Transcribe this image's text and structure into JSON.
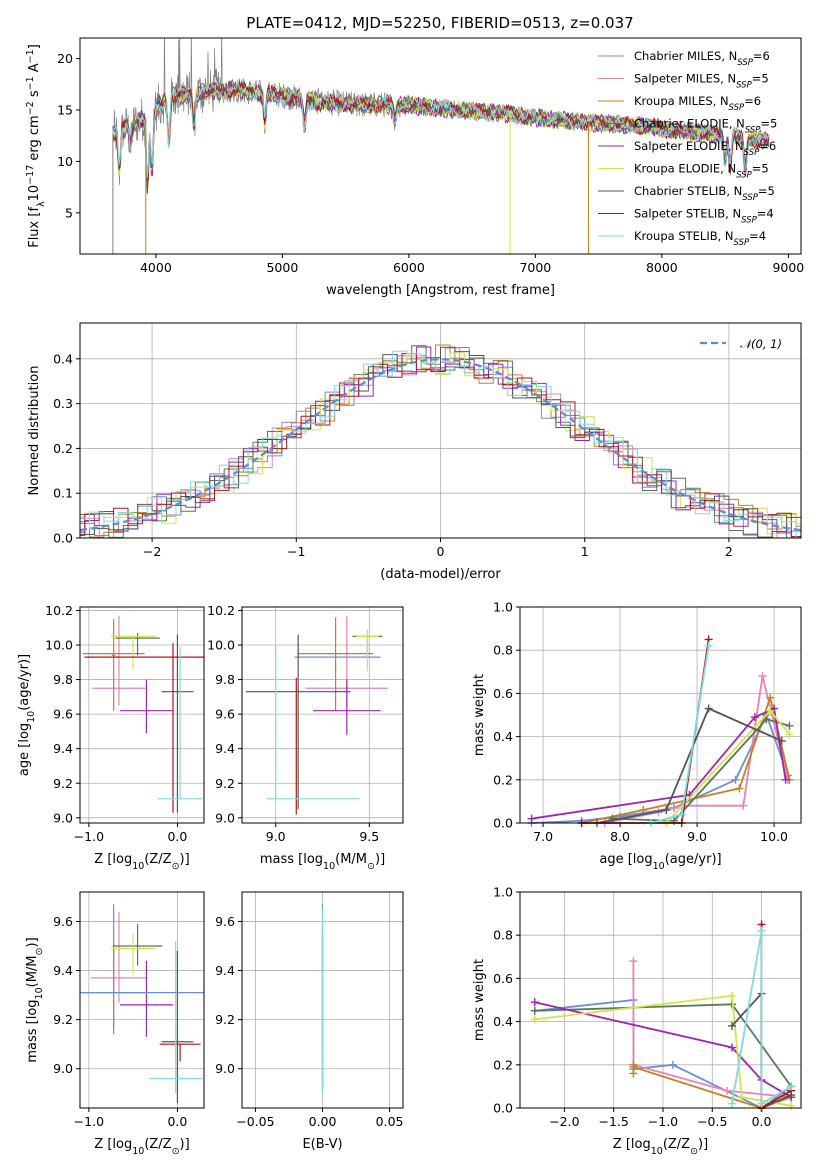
{
  "figure": {
    "title": "PLATE=0412, MJD=52250, FIBERID=0513, z=0.037"
  },
  "models": [
    {
      "name": "Chabrier MILES, N$_{SSP}$=6",
      "label_main": "Chabrier MILES, N",
      "label_sub": "SSP",
      "label_tail": "=6",
      "color": "#6b8fd6"
    },
    {
      "name": "Salpeter MILES, N$_{SSP}$=5",
      "label_main": "Salpeter MILES, N",
      "label_sub": "SSP",
      "label_tail": "=5",
      "color": "#e882b4"
    },
    {
      "name": "Kroupa MILES, N$_{SSP}$=6",
      "label_main": "Kroupa MILES, N",
      "label_sub": "SSP",
      "label_tail": "=6",
      "color": "#c87f22"
    },
    {
      "name": "Chabrier ELODIE, N$_{SSP}$=5",
      "label_main": "Chabrier ELODIE, N",
      "label_sub": "SSP",
      "label_tail": "=5",
      "color": "#557a55"
    },
    {
      "name": "Salpeter ELODIE, N$_{SSP}$=6",
      "label_main": "Salpeter ELODIE, N",
      "label_sub": "SSP",
      "label_tail": "=6",
      "color": "#9b27b0"
    },
    {
      "name": "Kroupa ELODIE, N$_{SSP}$=5",
      "label_main": "Kroupa ELODIE, N",
      "label_sub": "SSP",
      "label_tail": "=5",
      "color": "#d6e24a"
    },
    {
      "name": "Chabrier STELIB, N$_{SSP}$=5",
      "label_main": "Chabrier STELIB, N",
      "label_sub": "SSP",
      "label_tail": "=5",
      "color": "#555555"
    },
    {
      "name": "Salpeter STELIB, N$_{SSP}$=4",
      "label_main": "Salpeter STELIB, N",
      "label_sub": "SSP",
      "label_tail": "=4",
      "color": "#b01515"
    },
    {
      "name": "Kroupa STELIB, N$_{SSP}$=4",
      "label_main": "Kroupa STELIB, N",
      "label_sub": "SSP",
      "label_tail": "=4",
      "color": "#7fdbe0"
    }
  ],
  "chart_data": [
    {
      "id": "spectrum",
      "type": "line",
      "title": "PLATE=0412, MJD=52250, FIBERID=0513, z=0.037",
      "xlabel": "wavelength [Angstrom, rest frame]",
      "ylabel_main": "Flux [f",
      "ylabel_rest": "10",
      "ylabel_units": "erg cm",
      "ylabel_a": "s",
      "ylabel_b": "A",
      "xlim": [
        3400,
        9100
      ],
      "ylim": [
        1,
        22
      ],
      "xticks": [
        4000,
        5000,
        6000,
        7000,
        8000,
        9000
      ],
      "yticks": [
        5,
        10,
        15,
        20
      ],
      "continuum": [
        [
          3660,
          12.7
        ],
        [
          3800,
          13.5
        ],
        [
          3950,
          14.5
        ],
        [
          4100,
          16.4
        ],
        [
          4300,
          16.6
        ],
        [
          4600,
          17.0
        ],
        [
          5000,
          16.4
        ],
        [
          5300,
          15.8
        ],
        [
          5600,
          15.5
        ],
        [
          6000,
          15.5
        ],
        [
          6400,
          15.0
        ],
        [
          6800,
          14.6
        ],
        [
          7000,
          14.2
        ],
        [
          7400,
          13.8
        ],
        [
          7800,
          13.5
        ],
        [
          8200,
          12.9
        ],
        [
          8600,
          12.4
        ],
        [
          8850,
          12.0
        ]
      ],
      "absorption": [
        [
          3710,
          9.0
        ],
        [
          3800,
          11.5
        ],
        [
          3934,
          7.5
        ],
        [
          3969,
          9.0
        ],
        [
          4102,
          12.0
        ],
        [
          4300,
          13.8
        ],
        [
          4861,
          13.8
        ],
        [
          5175,
          13.5
        ],
        [
          5890,
          14.0
        ],
        [
          8500,
          9.8
        ],
        [
          8540,
          9.5
        ],
        [
          8660,
          9.0
        ]
      ]
    },
    {
      "id": "residuals",
      "type": "bar",
      "xlabel": "(data-model)/error",
      "ylabel": "Normed distribution",
      "xlim": [
        -2.5,
        2.5
      ],
      "ylim": [
        0,
        0.48
      ],
      "xticks": [
        -2,
        -1,
        0,
        1,
        2
      ],
      "yticks": [
        0,
        0.1,
        0.2,
        0.3,
        0.4
      ],
      "legend": "$\\mathcal{N}(0,1)$",
      "legend_text": "𝒩(0, 1)"
    },
    {
      "id": "z_age",
      "type": "scatter",
      "xlabel": "Z [log$_{10}$(Z/Z$_\\odot$)]",
      "ylabel": "age  [log$_{10}$(age/yr)]",
      "xlim": [
        -1.1,
        0.3
      ],
      "ylim": [
        8.97,
        10.22
      ],
      "xticks": [
        -1,
        0
      ],
      "yticks": [
        9.0,
        9.2,
        9.4,
        9.6,
        9.8,
        10.0,
        10.2
      ],
      "points": [
        {
          "m": 0,
          "x": -0.72,
          "xerr": 0.02,
          "y": 9.94,
          "yerr_lo": 0.0,
          "yerr_hi": 0.0
        },
        {
          "m": 1,
          "x": -0.66,
          "xerr": 0.3,
          "y": 9.75,
          "yerr_lo": 0.1,
          "yerr_hi": 0.42
        },
        {
          "m": 2,
          "x": -0.72,
          "xerr": 0.35,
          "y": 9.95,
          "yerr_lo": 0.33,
          "yerr_hi": 0.2
        },
        {
          "m": 3,
          "x": -0.45,
          "xerr": 0.25,
          "y": 10.04,
          "yerr_lo": 0.1,
          "yerr_hi": 0.03
        },
        {
          "m": 4,
          "x": -0.35,
          "xerr": 0.3,
          "y": 9.62,
          "yerr_lo": 0.13,
          "yerr_hi": 0.18
        },
        {
          "m": 5,
          "x": -0.5,
          "xerr": 0.25,
          "y": 10.05,
          "yerr_lo": 0.19,
          "yerr_hi": 0.0
        },
        {
          "m": 6,
          "x": 0.0,
          "xerr": 0.18,
          "y": 9.73,
          "yerr_lo": 0.7,
          "yerr_hi": 0.33
        },
        {
          "m": 7,
          "x": -0.05,
          "xerr": 1.0,
          "y": 9.93,
          "yerr_lo": 0.9,
          "yerr_hi": 0.08
        },
        {
          "m": 8,
          "x": 0.03,
          "xerr": 0.25,
          "y": 9.11,
          "yerr_lo": 0.0,
          "yerr_hi": 0.88
        }
      ]
    },
    {
      "id": "mass_age",
      "type": "scatter",
      "xlabel": "mass [log$_{10}$(M/M$_\\odot$)]",
      "ylabel": "",
      "xlim": [
        8.82,
        9.68
      ],
      "ylim": [
        8.97,
        10.22
      ],
      "xticks": [
        9.0,
        9.5
      ],
      "yticks": [
        9.0,
        9.2,
        9.4,
        9.6,
        9.8,
        10.0,
        10.2
      ],
      "points": [
        {
          "m": 0,
          "x": 9.33,
          "xerr": 0.23,
          "y": 9.93,
          "yerr_lo": 0.0,
          "yerr_hi": 0.0
        },
        {
          "m": 1,
          "x": 9.38,
          "xerr": 0.22,
          "y": 9.75,
          "yerr_lo": 0.1,
          "yerr_hi": 0.42
        },
        {
          "m": 2,
          "x": 9.32,
          "xerr": 0.2,
          "y": 9.95,
          "yerr_lo": 0.33,
          "yerr_hi": 0.21
        },
        {
          "m": 3,
          "x": 9.49,
          "xerr": 0.08,
          "y": 10.05,
          "yerr_lo": 0.1,
          "yerr_hi": 0.03
        },
        {
          "m": 4,
          "x": 9.38,
          "xerr": 0.18,
          "y": 9.62,
          "yerr_lo": 0.14,
          "yerr_hi": 0.18
        },
        {
          "m": 5,
          "x": 9.49,
          "xerr": 0.06,
          "y": 10.05,
          "yerr_lo": 0.2,
          "yerr_hi": 0.04
        },
        {
          "m": 6,
          "x": 9.12,
          "xerr": 0.28,
          "y": 9.73,
          "yerr_lo": 0.68,
          "yerr_hi": 0.33
        },
        {
          "m": 7,
          "x": 9.11,
          "xerr": 0.0,
          "y": 9.6,
          "yerr_lo": 0.58,
          "yerr_hi": 0.21
        },
        {
          "m": 8,
          "x": 9.0,
          "xerr": 0.0,
          "y": 9.11,
          "yerr_lo": 0.0,
          "yerr_hi": 0.89
        },
        {
          "m": 8,
          "x": 9.2,
          "xerr": 0.25,
          "y": 9.11,
          "yerr_lo": 0.0,
          "yerr_hi": 0.0
        }
      ]
    },
    {
      "id": "age_weight",
      "type": "line",
      "xlabel": "age  [log$_{10}$(age/yr)]",
      "ylabel": "mass weight",
      "xlim": [
        6.7,
        10.35
      ],
      "ylim": [
        0,
        1.0
      ],
      "xticks": [
        7,
        8,
        9,
        10
      ],
      "yticks": [
        0.0,
        0.2,
        0.4,
        0.6,
        0.8,
        1.0
      ],
      "series": [
        {
          "m": 0,
          "x": [
            6.85,
            7.5,
            8.0,
            8.7,
            9.5,
            9.9,
            10.18
          ],
          "y": [
            0.0,
            0.01,
            0.03,
            0.07,
            0.2,
            0.5,
            0.22
          ]
        },
        {
          "m": 1,
          "x": [
            7.8,
            8.5,
            8.8,
            9.6,
            9.85,
            10.18
          ],
          "y": [
            0.0,
            0.05,
            0.08,
            0.08,
            0.68,
            0.2
          ]
        },
        {
          "m": 2,
          "x": [
            7.5,
            8.3,
            9.55,
            9.95,
            10.2
          ],
          "y": [
            0.0,
            0.06,
            0.16,
            0.58,
            0.2
          ]
        },
        {
          "m": 3,
          "x": [
            7.9,
            8.7,
            9.9,
            10.2
          ],
          "y": [
            0.02,
            0.01,
            0.48,
            0.45
          ]
        },
        {
          "m": 4,
          "x": [
            6.85,
            8.9,
            9.75,
            10.0,
            10.15
          ],
          "y": [
            0.02,
            0.13,
            0.49,
            0.53,
            0.2
          ]
        },
        {
          "m": 5,
          "x": [
            8.6,
            9.95,
            10.2
          ],
          "y": [
            0.0,
            0.52,
            0.41
          ]
        },
        {
          "m": 6,
          "x": [
            7.7,
            8.6,
            9.15,
            10.1
          ],
          "y": [
            0.0,
            0.06,
            0.53,
            0.38
          ]
        },
        {
          "m": 7,
          "x": [
            7.5,
            8.8,
            9.15
          ],
          "y": [
            0.0,
            0.0,
            0.85
          ]
        },
        {
          "m": 8,
          "x": [
            8.4,
            8.8,
            9.15
          ],
          "y": [
            0.0,
            0.04,
            0.82
          ]
        }
      ]
    },
    {
      "id": "z_mass",
      "type": "scatter",
      "xlabel": "Z [log$_{10}$(Z/Z$_\\odot$)]",
      "ylabel": "mass [log$_{10}$(M/M$_\\odot$)]",
      "xlim": [
        -1.1,
        0.3
      ],
      "ylim": [
        8.84,
        9.72
      ],
      "xticks": [
        -1,
        0
      ],
      "yticks": [
        9.0,
        9.2,
        9.4,
        9.6
      ],
      "points": [
        {
          "m": 0,
          "x": -0.72,
          "xerr": 0.0,
          "y": 9.4,
          "yerr_lo": 0.26,
          "yerr_hi": 0.27
        },
        {
          "m": 1,
          "x": -0.66,
          "xerr": 0.32,
          "y": 9.37,
          "yerr_lo": 0.1,
          "yerr_hi": 0.27
        },
        {
          "m": 2,
          "x": -0.72,
          "xerr": 0.35,
          "y": 9.31,
          "yerr_lo": 0.14,
          "yerr_hi": 0.2
        },
        {
          "m": 3,
          "x": -0.45,
          "xerr": 0.28,
          "y": 9.5,
          "yerr_lo": 0.08,
          "yerr_hi": 0.09
        },
        {
          "m": 4,
          "x": -0.35,
          "xerr": 0.3,
          "y": 9.26,
          "yerr_lo": 0.13,
          "yerr_hi": 0.18
        },
        {
          "m": 5,
          "x": -0.5,
          "xerr": 0.25,
          "y": 9.49,
          "yerr_lo": 0.1,
          "yerr_hi": 0.06
        },
        {
          "m": 6,
          "x": 0.0,
          "xerr": 0.18,
          "y": 9.11,
          "yerr_lo": 0.25,
          "yerr_hi": 0.37
        },
        {
          "m": 7,
          "x": 0.03,
          "xerr": 0.23,
          "y": 9.1,
          "yerr_lo": 0.07,
          "yerr_hi": 0.0
        },
        {
          "m": 8,
          "x": -0.02,
          "xerr": 0.3,
          "y": 8.96,
          "yerr_lo": 0.06,
          "yerr_hi": 0.56
        },
        {
          "m": 0,
          "x": -0.6,
          "xerr": 0.9,
          "y": 9.31,
          "yerr_lo": 0.0,
          "yerr_hi": 0.0
        }
      ]
    },
    {
      "id": "ebv_mass",
      "type": "scatter",
      "xlabel": "E(B-V)",
      "ylabel": "",
      "xlim": [
        -0.06,
        0.06
      ],
      "ylim": [
        8.84,
        9.72
      ],
      "xticks": [
        -0.05,
        0.0,
        0.05
      ],
      "yticks": [
        9.0,
        9.2,
        9.4,
        9.6
      ],
      "points": [
        {
          "m": 0,
          "x": 0.0,
          "xerr": 0.0,
          "y": 9.4,
          "yerr_lo": 0.48,
          "yerr_hi": 0.27
        },
        {
          "m": 1,
          "x": 0.0,
          "xerr": 0.0,
          "y": 9.37,
          "yerr_lo": 0.3,
          "yerr_hi": 0.28
        },
        {
          "m": 6,
          "x": 0.0,
          "xerr": 0.0,
          "y": 9.35,
          "yerr_lo": 0.45,
          "yerr_hi": 0.2
        },
        {
          "m": 8,
          "x": 0.0,
          "xerr": 0.0,
          "y": 9.2,
          "yerr_lo": 0.3,
          "yerr_hi": 0.45
        }
      ]
    },
    {
      "id": "z_weight",
      "type": "line",
      "xlabel": "Z [log$_{10}$(Z/Z$_\\odot$)]",
      "ylabel": "mass weight",
      "xlim": [
        -2.45,
        0.4
      ],
      "ylim": [
        0,
        1.0
      ],
      "xticks": [
        -2.0,
        -1.5,
        -1.0,
        -0.5,
        0.0
      ],
      "yticks": [
        0.0,
        0.2,
        0.4,
        0.6,
        0.8,
        1.0
      ],
      "series": [
        {
          "m": 0,
          "x": [
            -2.3,
            -1.3,
            -1.3,
            -0.9,
            0.0,
            0.3
          ],
          "y": [
            0.45,
            0.5,
            0.18,
            0.2,
            0.0,
            0.1
          ]
        },
        {
          "m": 1,
          "x": [
            -1.3,
            -1.3,
            -0.35,
            0.3
          ],
          "y": [
            0.68,
            0.2,
            0.08,
            0.05
          ]
        },
        {
          "m": 2,
          "x": [
            -1.3,
            -1.3,
            -1.3,
            0.0,
            0.3
          ],
          "y": [
            0.16,
            0.2,
            0.19,
            0.0,
            0.05
          ]
        },
        {
          "m": 3,
          "x": [
            -2.3,
            -0.3,
            0.3
          ],
          "y": [
            0.45,
            0.48,
            0.1
          ]
        },
        {
          "m": 4,
          "x": [
            -2.3,
            -0.3,
            0.0,
            0.3
          ],
          "y": [
            0.49,
            0.28,
            0.13,
            0.05
          ]
        },
        {
          "m": 5,
          "x": [
            -2.3,
            -0.3,
            -0.2,
            0.3
          ],
          "y": [
            0.41,
            0.52,
            0.05,
            0.01
          ]
        },
        {
          "m": 6,
          "x": [
            -0.3,
            0.0,
            0.0,
            0.3
          ],
          "y": [
            0.38,
            0.53,
            0.0,
            0.06
          ]
        },
        {
          "m": 7,
          "x": [
            0.0,
            0.0,
            0.3
          ],
          "y": [
            0.85,
            0.0,
            0.08
          ]
        },
        {
          "m": 8,
          "x": [
            -0.3,
            0.0,
            0.0,
            0.3
          ],
          "y": [
            0.02,
            0.82,
            0.02,
            0.1
          ]
        }
      ]
    }
  ]
}
